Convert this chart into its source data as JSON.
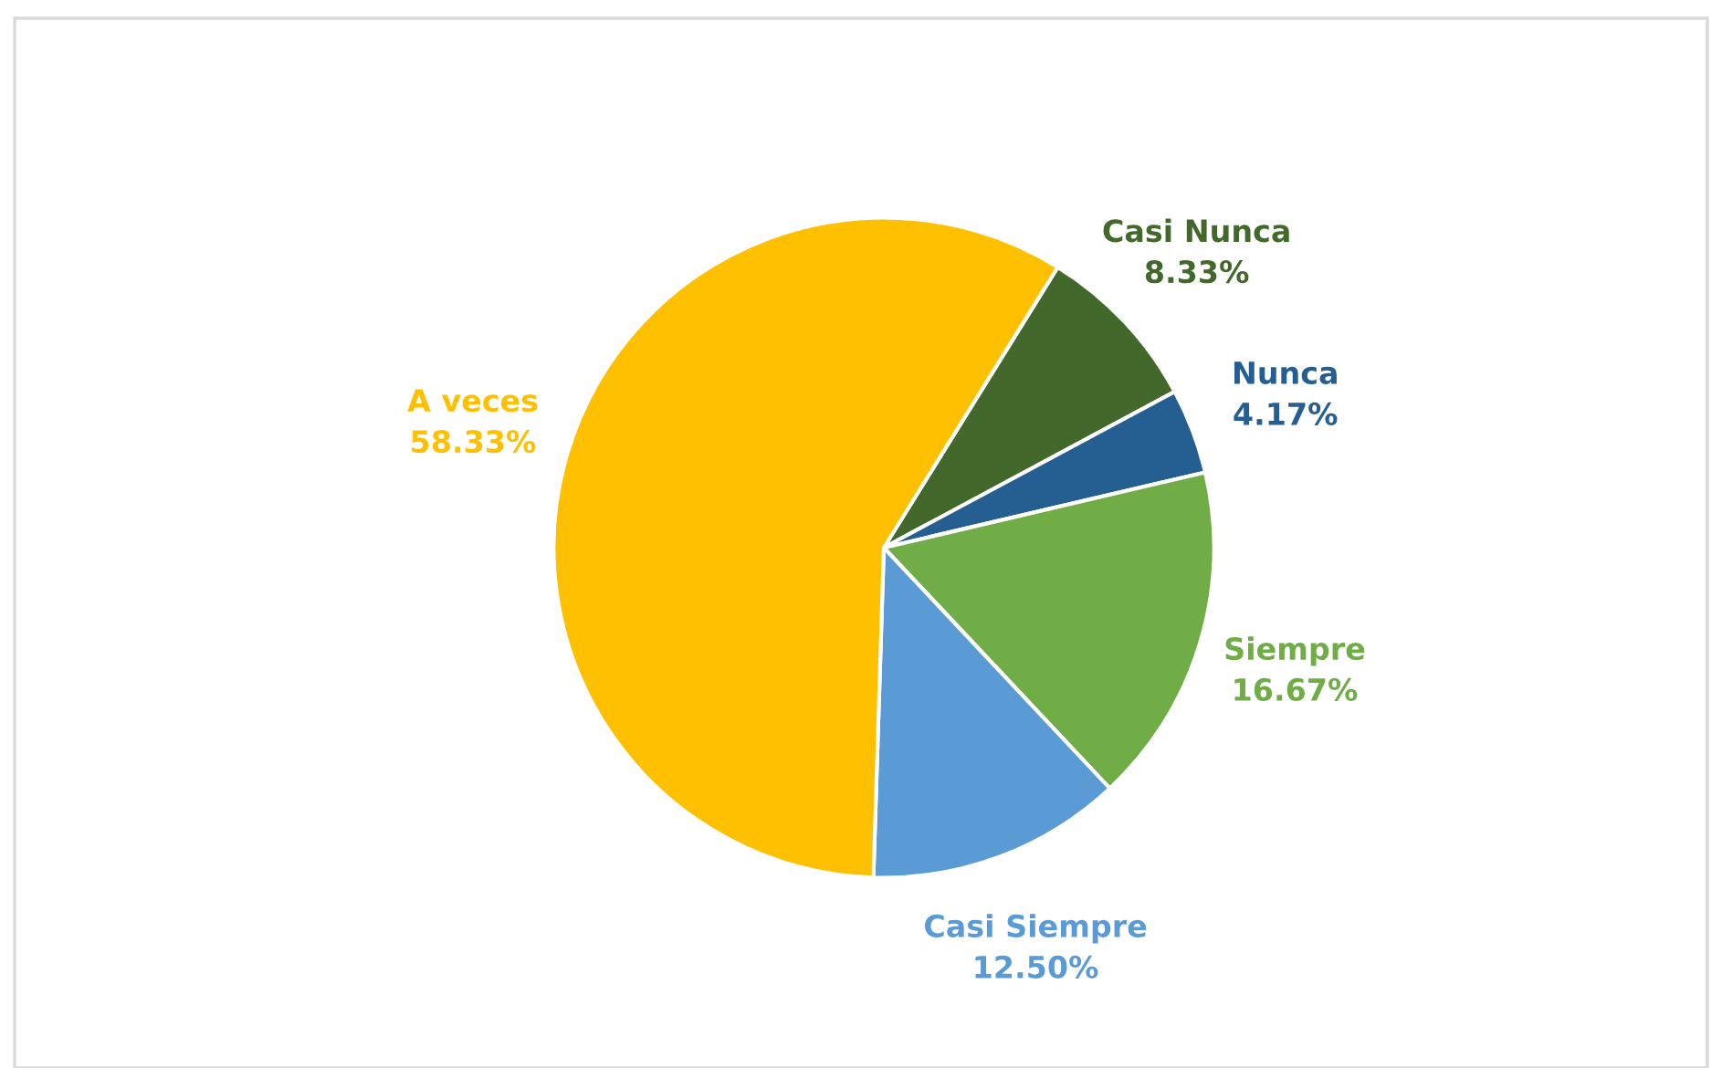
{
  "chart_data": {
    "type": "pie",
    "categories": [
      "Casi Nunca",
      "Nunca",
      "Siempre",
      "Casi Siempre",
      "A veces"
    ],
    "values": [
      8.33,
      4.17,
      16.67,
      12.5,
      58.33
    ],
    "value_labels": [
      "8.33%",
      "4.17%",
      "16.67%",
      "12.50%",
      "58.33%"
    ],
    "colors": [
      "#43682b",
      "#255e91",
      "#70ad47",
      "#5b9bd5",
      "#ffc000"
    ],
    "legend": false
  }
}
